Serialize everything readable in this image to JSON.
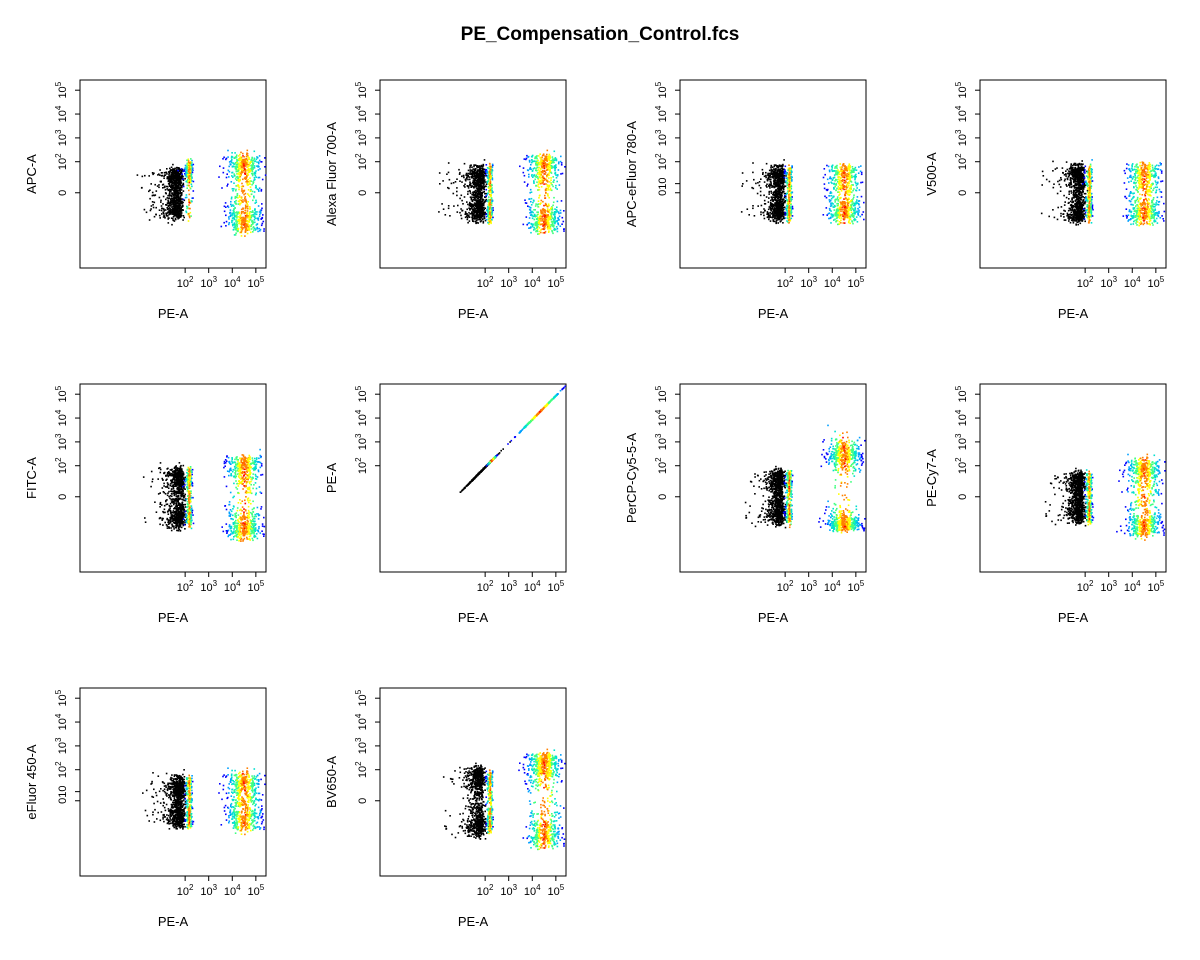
{
  "title": "PE_Compensation_Control.fcs",
  "colors": {
    "low_density": "#000000",
    "density_ramp": [
      "#0000ff",
      "#00a0ff",
      "#00e0d0",
      "#40ff80",
      "#ffff00",
      "#ff8000",
      "#ff0000"
    ]
  },
  "chart_data": [
    {
      "type": "scatter",
      "xlabel": "PE-A",
      "ylabel": "APC-A",
      "xticks": [
        "10^2",
        "10^3",
        "10^4",
        "10^5"
      ],
      "yticks": [
        "0",
        "10^2",
        "10^3",
        "10^4",
        "10^5"
      ],
      "populations": [
        {
          "x_center": 35,
          "x_spread": 18,
          "y_center": 0,
          "y_spread": 25,
          "count": 900,
          "color": "black"
        },
        {
          "x_center": 140,
          "x_spread": 25,
          "y_center": 40,
          "y_spread": 35,
          "count": 280,
          "color": "density"
        },
        {
          "x_center": 30000,
          "x_spread": 0.35,
          "y_center": 0,
          "y_spread": 90,
          "count": 800,
          "color": "density"
        }
      ]
    },
    {
      "type": "scatter",
      "xlabel": "PE-A",
      "ylabel": "Alexa Fluor 700-A",
      "xticks": [
        "10^2",
        "10^3",
        "10^4",
        "10^5"
      ],
      "yticks": [
        "0",
        "10^2",
        "10^3",
        "10^4",
        "10^5"
      ],
      "populations": [
        {
          "x_center": 45,
          "x_spread": 22,
          "y_center": 0,
          "y_spread": 30,
          "count": 900,
          "color": "black"
        },
        {
          "x_center": 150,
          "x_spread": 22,
          "y_center": 0,
          "y_spread": 35,
          "count": 280,
          "color": "density"
        },
        {
          "x_center": 30000,
          "x_spread": 0.35,
          "y_center": 0,
          "y_spread": 90,
          "count": 800,
          "color": "density"
        }
      ]
    },
    {
      "type": "scatter",
      "xlabel": "PE-A",
      "ylabel": "APC-eFluor 780-A",
      "xticks": [
        "10^2",
        "10^3",
        "10^4",
        "10^5"
      ],
      "yticks": [
        "0",
        "10",
        "10^2",
        "10^3",
        "10^4",
        "10^5"
      ],
      "populations": [
        {
          "x_center": 45,
          "x_spread": 20,
          "y_center": 0,
          "y_spread": 30,
          "count": 900,
          "color": "black"
        },
        {
          "x_center": 140,
          "x_spread": 22,
          "y_center": 0,
          "y_spread": 30,
          "count": 280,
          "color": "density"
        },
        {
          "x_center": 30000,
          "x_spread": 0.35,
          "y_center": 0,
          "y_spread": 35,
          "count": 700,
          "color": "density"
        }
      ]
    },
    {
      "type": "scatter",
      "xlabel": "PE-A",
      "ylabel": "V500-A",
      "xticks": [
        "10^2",
        "10^3",
        "10^4",
        "10^5"
      ],
      "yticks": [
        "0",
        "10^2",
        "10^3",
        "10^4",
        "10^5"
      ],
      "populations": [
        {
          "x_center": 45,
          "x_spread": 20,
          "y_center": 0,
          "y_spread": 35,
          "count": 900,
          "color": "black"
        },
        {
          "x_center": 140,
          "x_spread": 22,
          "y_center": 0,
          "y_spread": 30,
          "count": 280,
          "color": "density"
        },
        {
          "x_center": 30000,
          "x_spread": 0.35,
          "y_center": 0,
          "y_spread": 40,
          "count": 700,
          "color": "density"
        }
      ]
    },
    {
      "type": "scatter",
      "xlabel": "PE-A",
      "ylabel": "FITC-A",
      "xticks": [
        "10^2",
        "10^3",
        "10^4",
        "10^5"
      ],
      "yticks": [
        "0",
        "10^2",
        "10^3",
        "10^4",
        "10^5"
      ],
      "populations": [
        {
          "x_center": 45,
          "x_spread": 20,
          "y_center": 0,
          "y_spread": 40,
          "count": 900,
          "color": "black"
        },
        {
          "x_center": 140,
          "x_spread": 22,
          "y_center": 0,
          "y_spread": 35,
          "count": 280,
          "color": "density"
        },
        {
          "x_center": 30000,
          "x_spread": 0.35,
          "y_center": 0,
          "y_spread": 120,
          "count": 800,
          "color": "density"
        }
      ]
    },
    {
      "type": "scatter",
      "xlabel": "PE-A",
      "ylabel": "PE-A",
      "xticks": [
        "10^2",
        "10^3",
        "10^4",
        "10^5"
      ],
      "yticks": [
        "10^2",
        "10^3",
        "10^4",
        "10^5"
      ],
      "diagonal": true,
      "populations": [
        {
          "x_center": 60,
          "x_spread": 0.35,
          "count": 400,
          "color": "black"
        },
        {
          "x_center": 180,
          "x_spread": 0.1,
          "count": 80,
          "color": "density"
        },
        {
          "x_center": 20000,
          "x_spread": 0.45,
          "count": 300,
          "color": "density"
        }
      ]
    },
    {
      "type": "scatter",
      "xlabel": "PE-A",
      "ylabel": "PerCP-Cy5-5-A",
      "xticks": [
        "10^2",
        "10^3",
        "10^4",
        "10^5"
      ],
      "yticks": [
        "0",
        "10^2",
        "10^3",
        "10^4",
        "10^5"
      ],
      "populations": [
        {
          "x_center": 45,
          "x_spread": 20,
          "y_center": 0,
          "y_spread": 30,
          "count": 900,
          "color": "black"
        },
        {
          "x_center": 140,
          "x_spread": 22,
          "y_center": 0,
          "y_spread": 30,
          "count": 280,
          "color": "density"
        },
        {
          "x_center": 30000,
          "x_spread": 0.35,
          "y_center": 300,
          "y_spread": 0.35,
          "count": 450,
          "color": "density"
        },
        {
          "x_center": 30000,
          "x_spread": 0.35,
          "y_center": -60,
          "y_spread": 30,
          "count": 450,
          "color": "density"
        }
      ]
    },
    {
      "type": "scatter",
      "xlabel": "PE-A",
      "ylabel": "PE-Cy7-A",
      "xticks": [
        "10^2",
        "10^3",
        "10^4",
        "10^5"
      ],
      "yticks": [
        "0",
        "10^2",
        "10^3",
        "10^4",
        "10^5"
      ],
      "populations": [
        {
          "x_center": 45,
          "x_spread": 20,
          "y_center": 0,
          "y_spread": 25,
          "count": 900,
          "color": "black"
        },
        {
          "x_center": 140,
          "x_spread": 22,
          "y_center": 0,
          "y_spread": 25,
          "count": 280,
          "color": "density"
        },
        {
          "x_center": 30000,
          "x_spread": 0.35,
          "y_center": 0,
          "y_spread": 90,
          "count": 800,
          "color": "density"
        }
      ]
    },
    {
      "type": "scatter",
      "xlabel": "PE-A",
      "ylabel": "eFluor 450-A",
      "xticks": [
        "10^2",
        "10^3",
        "10^4",
        "10^5"
      ],
      "yticks": [
        "0",
        "10",
        "10^2",
        "10^3",
        "10^4",
        "10^5"
      ],
      "populations": [
        {
          "x_center": 45,
          "x_spread": 20,
          "y_center": 0,
          "y_spread": 25,
          "count": 900,
          "color": "black"
        },
        {
          "x_center": 140,
          "x_spread": 22,
          "y_center": 0,
          "y_spread": 25,
          "count": 280,
          "color": "density"
        },
        {
          "x_center": 30000,
          "x_spread": 0.35,
          "y_center": 0,
          "y_spread": 35,
          "count": 700,
          "color": "density"
        }
      ]
    },
    {
      "type": "scatter",
      "xlabel": "PE-A",
      "ylabel": "BV650-A",
      "xticks": [
        "10^2",
        "10^3",
        "10^4",
        "10^5"
      ],
      "yticks": [
        "0",
        "10^2",
        "10^3",
        "10^4",
        "10^5"
      ],
      "populations": [
        {
          "x_center": 45,
          "x_spread": 20,
          "y_center": 0,
          "y_spread": 60,
          "count": 900,
          "color": "black"
        },
        {
          "x_center": 150,
          "x_spread": 22,
          "y_center": 0,
          "y_spread": 40,
          "count": 280,
          "color": "density"
        },
        {
          "x_center": 30000,
          "x_spread": 0.35,
          "y_center": 50,
          "y_spread": 200,
          "count": 900,
          "color": "density"
        }
      ]
    }
  ]
}
